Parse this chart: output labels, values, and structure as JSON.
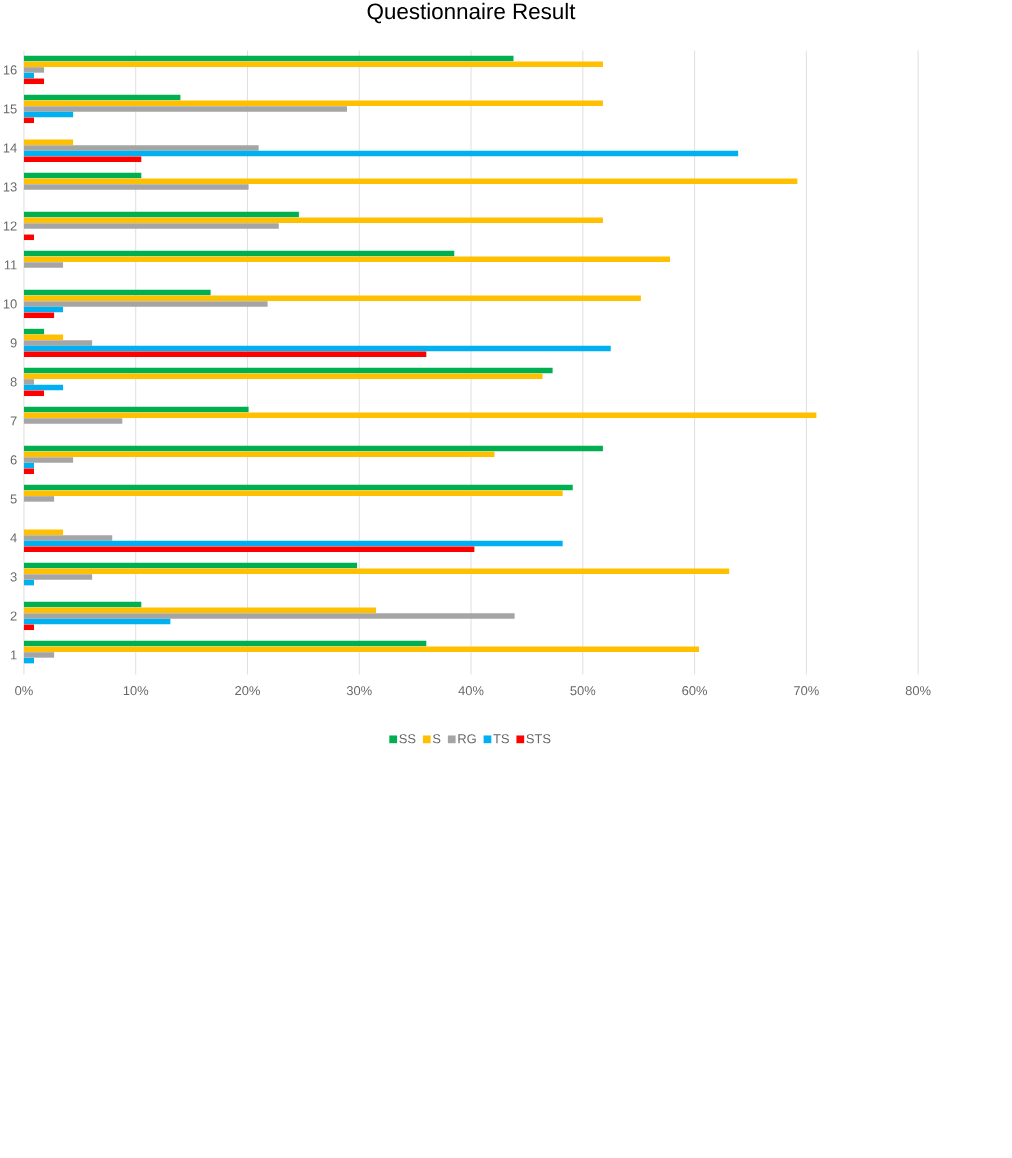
{
  "chart_data": {
    "type": "bar",
    "orientation": "horizontal",
    "title": "Questionnaire Result",
    "categories": [
      "16",
      "15",
      "14",
      "13",
      "12",
      "11",
      "10",
      "9",
      "8",
      "7",
      "6",
      "5",
      "4",
      "3",
      "2",
      "1"
    ],
    "series": [
      {
        "name": "SS",
        "color": "#00b050",
        "values": [
          43.8,
          14.0,
          null,
          10.5,
          24.6,
          38.5,
          16.7,
          1.8,
          47.3,
          20.1,
          51.8,
          49.1,
          null,
          29.8,
          10.5,
          36.0
        ]
      },
      {
        "name": "S",
        "color": "#ffc000",
        "values": [
          51.8,
          51.8,
          4.4,
          69.2,
          51.8,
          57.8,
          55.2,
          3.5,
          46.4,
          70.9,
          42.1,
          48.2,
          3.5,
          63.1,
          31.5,
          60.4
        ]
      },
      {
        "name": "RG",
        "color": "#a5a5a5",
        "values": [
          1.8,
          28.9,
          21.0,
          20.1,
          22.8,
          3.5,
          21.8,
          6.1,
          0.9,
          8.8,
          4.4,
          2.7,
          7.9,
          6.1,
          43.9,
          2.7
        ]
      },
      {
        "name": "TS",
        "color": "#00b0f0",
        "values": [
          0.9,
          4.4,
          63.9,
          null,
          null,
          null,
          3.5,
          52.5,
          3.5,
          null,
          0.9,
          null,
          48.2,
          0.9,
          13.1,
          0.9
        ]
      },
      {
        "name": "STS",
        "color": "#ff0000",
        "values": [
          1.8,
          0.9,
          10.5,
          null,
          0.9,
          null,
          2.7,
          36.0,
          1.8,
          null,
          0.9,
          null,
          40.3,
          null,
          0.9,
          null
        ]
      }
    ],
    "xlim": [
      0,
      80
    ],
    "xticks": [
      {
        "value": 0,
        "label": "0%"
      },
      {
        "value": 10,
        "label": "10%"
      },
      {
        "value": 20,
        "label": "20%"
      },
      {
        "value": 30,
        "label": "30%"
      },
      {
        "value": 40,
        "label": "40%"
      },
      {
        "value": 50,
        "label": "50%"
      },
      {
        "value": 60,
        "label": "60%"
      },
      {
        "value": 70,
        "label": "70%"
      },
      {
        "value": 80,
        "label": "80%"
      }
    ],
    "grid": "x",
    "legend": "bottom"
  }
}
